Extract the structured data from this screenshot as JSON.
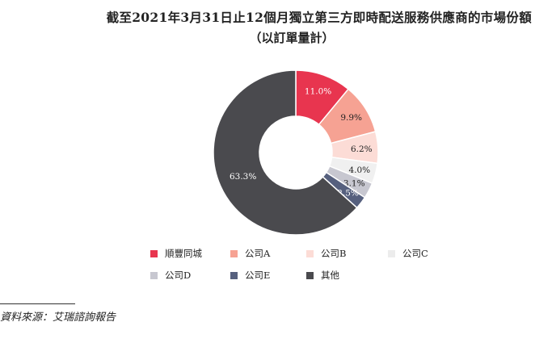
{
  "chart_data": {
    "type": "pie",
    "title": "截至2021年3月31日止12個月獨立第三方即時配送服務供應商的市場份額",
    "subtitle": "（以訂單量計）",
    "categories": [
      "順豐同城",
      "公司A",
      "公司B",
      "公司C",
      "公司D",
      "公司E",
      "其他"
    ],
    "values": [
      11.0,
      9.9,
      6.2,
      4.0,
      3.1,
      2.5,
      63.3
    ],
    "labels": [
      "11.0%",
      "9.9%",
      "6.2%",
      "4.0%",
      "3.1%",
      "2.5%",
      "63.3%"
    ],
    "colors": [
      "#e8354f",
      "#f6a293",
      "#fcdcd6",
      "#f0f0f0",
      "#c7c7d0",
      "#56607e",
      "#4a4a4e"
    ],
    "legend_placement": "bottom"
  },
  "source": "資料來源：艾瑞諮詢報告"
}
